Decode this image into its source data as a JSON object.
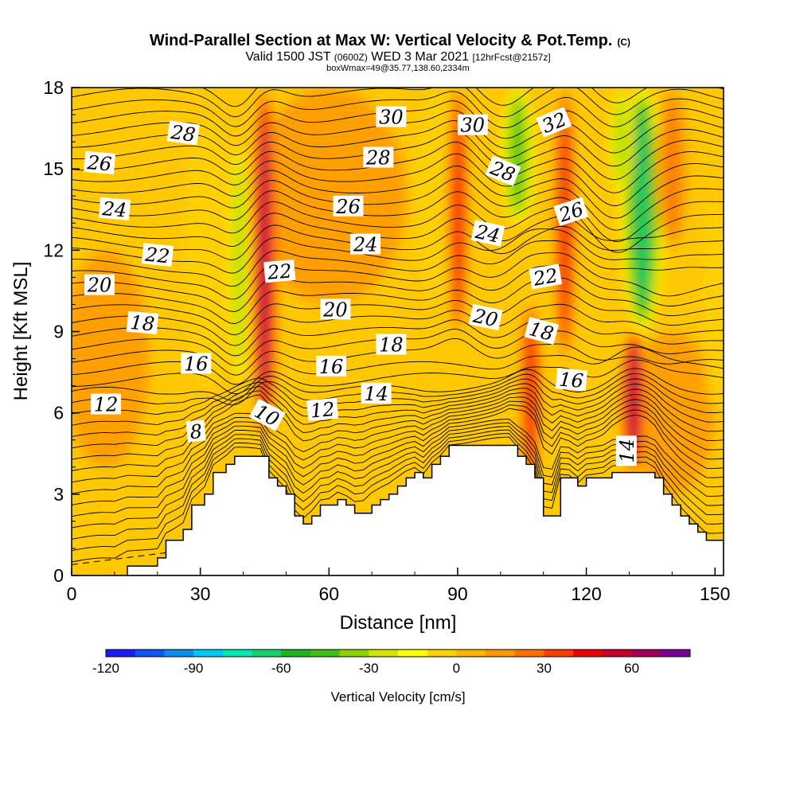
{
  "header": {
    "title": "Wind-Parallel Section at Max W: Vertical Velocity & Pot.Temp.",
    "copyright": "(C)",
    "valid_prefix": "Valid 1500 JST",
    "valid_utc": "(0600Z)",
    "valid_date": "WED 3 Mar 2021",
    "forecast": "[12hrFcst@2157z]",
    "boxinfo": "boxWmax=49@35.77,138.60,2334m"
  },
  "chart_data": {
    "type": "heatmap",
    "xlabel": "Distance [nm]",
    "ylabel": "Height [Kft MSL]",
    "xlim": [
      0,
      152
    ],
    "ylim": [
      0,
      18
    ],
    "x_ticks": [
      0,
      30,
      60,
      90,
      120,
      150
    ],
    "y_ticks": [
      0,
      3,
      6,
      9,
      12,
      15,
      18
    ],
    "colorbar": {
      "label": "Vertical Velocity [cm/s]",
      "min": -120,
      "max": 80,
      "step": 10,
      "tick_values": [
        -120,
        -90,
        -60,
        -30,
        0,
        30,
        60
      ],
      "colors": [
        "#1a1aff",
        "#0f55f5",
        "#0a8cf0",
        "#00c8f5",
        "#00e6b4",
        "#14d26e",
        "#1eb41e",
        "#3cbe14",
        "#8cd200",
        "#d2e600",
        "#ffff00",
        "#ffd200",
        "#ffb400",
        "#ff9600",
        "#ff6e00",
        "#ff3c00",
        "#f00000",
        "#c8002d",
        "#a00055",
        "#780096"
      ]
    },
    "terrain_profile": {
      "x": [
        0,
        10,
        13,
        20,
        22,
        26,
        28,
        31,
        33,
        36,
        38,
        41,
        44,
        46,
        48,
        50,
        52,
        54,
        56,
        58,
        60,
        62,
        64,
        66,
        68,
        70,
        72,
        74,
        76,
        78,
        80,
        82,
        84,
        86,
        88,
        90,
        96,
        102,
        104,
        106,
        108,
        110,
        112,
        114,
        116,
        118,
        120,
        122,
        124,
        126,
        130,
        132,
        134,
        136,
        138,
        140,
        142,
        144,
        146,
        148,
        150,
        152
      ],
      "y": [
        0,
        0,
        0.35,
        0.65,
        1.3,
        1.7,
        2.6,
        3.0,
        3.8,
        4.1,
        4.4,
        4.4,
        4.4,
        3.6,
        3.3,
        3.0,
        2.2,
        1.9,
        2.2,
        2.6,
        2.6,
        2.8,
        2.6,
        2.3,
        2.3,
        2.6,
        2.8,
        3.0,
        3.3,
        3.6,
        3.8,
        3.6,
        4.1,
        4.4,
        4.8,
        4.8,
        4.8,
        4.8,
        4.4,
        4.1,
        3.6,
        2.2,
        2.2,
        3.6,
        3.6,
        3.3,
        3.6,
        3.6,
        3.6,
        3.8,
        3.8,
        3.8,
        3.8,
        3.6,
        3.0,
        2.6,
        2.2,
        1.9,
        1.6,
        1.3,
        1.3,
        1.3
      ]
    },
    "updrafts": [
      {
        "x": 45,
        "y0": 5,
        "y1": 18,
        "w": 60,
        "width": 3
      },
      {
        "x": 90,
        "y0": 9,
        "y1": 18,
        "w": 40,
        "width": 2.5
      },
      {
        "x": 107,
        "y0": 3.6,
        "y1": 10,
        "w": 45,
        "width": 2.5
      },
      {
        "x": 115,
        "y0": 8,
        "y1": 18,
        "w": 40,
        "width": 2.5
      },
      {
        "x": 131,
        "y0": 3.8,
        "y1": 9,
        "w": 65,
        "width": 3
      },
      {
        "x": 140,
        "y0": 12,
        "y1": 18,
        "w": 25,
        "width": 4
      }
    ],
    "downdrafts": [
      {
        "x": 39,
        "y0": 7,
        "y1": 16,
        "w": -35,
        "width": 2.5
      },
      {
        "x": 104,
        "y0": 13,
        "y1": 18,
        "w": -50,
        "width": 4
      },
      {
        "x": 133,
        "y0": 9,
        "y1": 18,
        "w": -70,
        "width": 5
      },
      {
        "x": 128,
        "y0": 14,
        "y1": 18,
        "w": -40,
        "width": 3
      }
    ],
    "isentrope_labels": [
      {
        "text": "28",
        "x": 26,
        "y": 16.3,
        "angle": 8
      },
      {
        "text": "26",
        "x": 6.5,
        "y": 15.2,
        "angle": 5
      },
      {
        "text": "24",
        "x": 10,
        "y": 13.5,
        "angle": 5
      },
      {
        "text": "22",
        "x": 20,
        "y": 11.8,
        "angle": 6
      },
      {
        "text": "20",
        "x": 6.5,
        "y": 10.7,
        "angle": 0
      },
      {
        "text": "18",
        "x": 16.5,
        "y": 9.3,
        "angle": 5
      },
      {
        "text": "16",
        "x": 29,
        "y": 7.8,
        "angle": 0
      },
      {
        "text": "12",
        "x": 8,
        "y": 6.3,
        "angle": 0
      },
      {
        "text": "8",
        "x": 29,
        "y": 5.3,
        "angle": -5
      },
      {
        "text": "10",
        "x": 45.5,
        "y": 5.9,
        "angle": 28
      },
      {
        "text": "22",
        "x": 48.5,
        "y": 11.2,
        "angle": -5
      },
      {
        "text": "20",
        "x": 61.5,
        "y": 9.8,
        "angle": 0
      },
      {
        "text": "16",
        "x": 60.5,
        "y": 7.7,
        "angle": 0
      },
      {
        "text": "12",
        "x": 58.5,
        "y": 6.1,
        "angle": -5
      },
      {
        "text": "14",
        "x": 71,
        "y": 6.7,
        "angle": 0
      },
      {
        "text": "18",
        "x": 74.5,
        "y": 8.5,
        "angle": 0
      },
      {
        "text": "24",
        "x": 68.5,
        "y": 12.2,
        "angle": 0
      },
      {
        "text": "26",
        "x": 64.5,
        "y": 13.6,
        "angle": 0
      },
      {
        "text": "28",
        "x": 71.5,
        "y": 15.4,
        "angle": 0
      },
      {
        "text": "30",
        "x": 74.5,
        "y": 16.9,
        "angle": 0
      },
      {
        "text": "30",
        "x": 93.5,
        "y": 16.6,
        "angle": 0
      },
      {
        "text": "32",
        "x": 112.5,
        "y": 16.7,
        "angle": -22
      },
      {
        "text": "28",
        "x": 100.5,
        "y": 14.9,
        "angle": 22
      },
      {
        "text": "26",
        "x": 116.5,
        "y": 13.4,
        "angle": -18
      },
      {
        "text": "24",
        "x": 97,
        "y": 12.6,
        "angle": 12
      },
      {
        "text": "22",
        "x": 110.5,
        "y": 11,
        "angle": -10
      },
      {
        "text": "20",
        "x": 96.5,
        "y": 9.5,
        "angle": 12
      },
      {
        "text": "18",
        "x": 109.5,
        "y": 9,
        "angle": 15
      },
      {
        "text": "16",
        "x": 116.5,
        "y": 7.2,
        "angle": 5
      },
      {
        "text": "14",
        "x": 129.5,
        "y": 4.6,
        "angle": -90
      }
    ]
  }
}
